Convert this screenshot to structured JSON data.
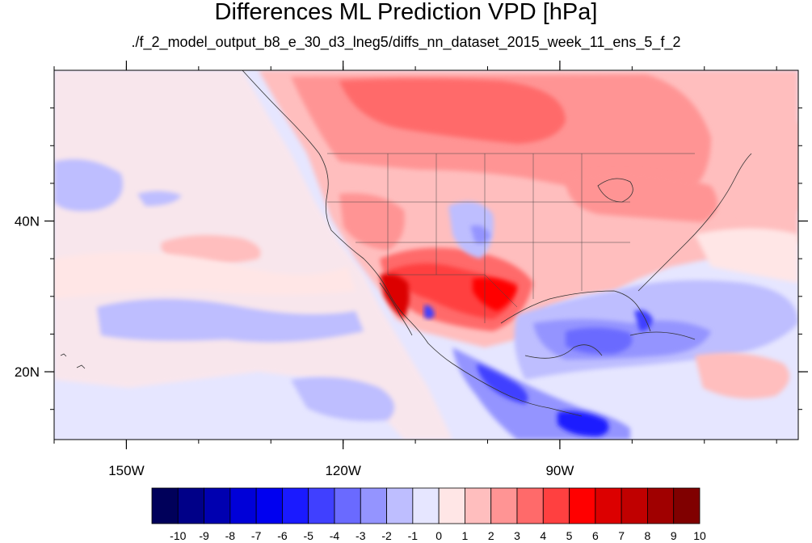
{
  "title": "Differences ML Prediction VPD [hPa]",
  "subtitle": "./f_2_model_output_b8_e_30_d3_lneg5/diffs_nn_dataset_2015_week_11_ens_5_f_2",
  "map": {
    "lon_range": [
      -160,
      -57
    ],
    "lat_range": [
      11,
      60
    ],
    "x_ticks": [
      {
        "lon": -150,
        "label": "150W"
      },
      {
        "lon": -120,
        "label": "120W"
      },
      {
        "lon": -90,
        "label": "90W"
      }
    ],
    "y_ticks": [
      {
        "lat": 40,
        "label": "40N"
      },
      {
        "lat": 20,
        "label": "20N"
      }
    ]
  },
  "colorbar": {
    "levels": [
      "-10",
      "-9",
      "-8",
      "-7",
      "-6",
      "-5",
      "-4",
      "-3",
      "-2",
      "-1",
      "0",
      "1",
      "2",
      "3",
      "4",
      "5",
      "6",
      "7",
      "8",
      "9",
      "10"
    ],
    "colors": [
      "#00005a",
      "#000088",
      "#0000b0",
      "#0000d8",
      "#0000f0",
      "#1a1aff",
      "#4040ff",
      "#6a6aff",
      "#9494ff",
      "#bebeff",
      "#e6e6ff",
      "#ffe6e6",
      "#ffbebe",
      "#ff9494",
      "#ff6a6a",
      "#ff4040",
      "#ff0000",
      "#dc0000",
      "#c00000",
      "#a00000",
      "#800000"
    ]
  }
}
